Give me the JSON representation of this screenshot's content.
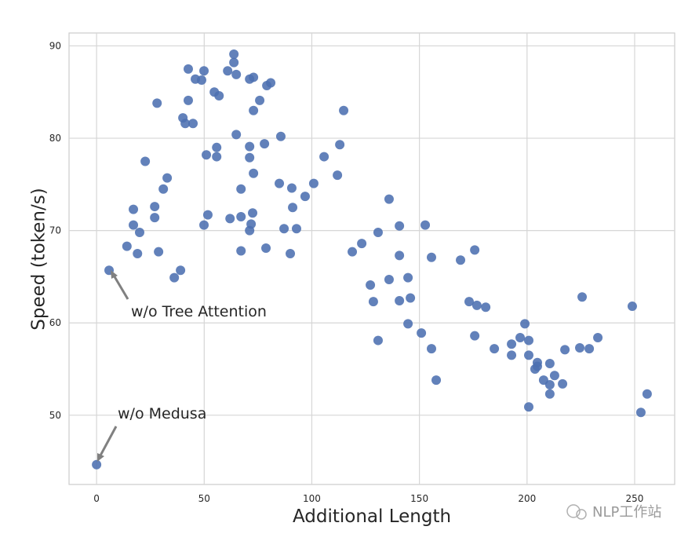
{
  "chart_data": {
    "type": "scatter",
    "x_label": "Additional Length",
    "y_label": "Speed (token/s)",
    "annotations": [
      "w/o Tree Attention",
      "w/o Medusa"
    ],
    "watermark": "NLP工作站",
    "color": "#4c6fb0",
    "grid": true,
    "xlim": [
      -12.8,
      268.6
    ],
    "ylim": [
      42.5,
      91.4
    ],
    "xticks": [
      0,
      50,
      100,
      150,
      200,
      250
    ],
    "yticks": [
      50,
      60,
      70,
      80,
      90
    ],
    "x": [
      0,
      5.8,
      14.1,
      17.1,
      17.1,
      19.0,
      20.0,
      22.6,
      27.0,
      27.0,
      28.1,
      28.8,
      31.0,
      32.8,
      36.1,
      39.0,
      40.1,
      41.2,
      42.6,
      42.6,
      44.8,
      45.9,
      48.8,
      49.9,
      49.9,
      51.0,
      51.7,
      54.7,
      55.8,
      55.8,
      56.9,
      60.9,
      62.0,
      63.8,
      63.8,
      64.9,
      64.9,
      67.1,
      67.1,
      67.1,
      71.1,
      72.9,
      71.1,
      71.1,
      71.1,
      71.8,
      72.5,
      72.9,
      72.9,
      75.8,
      78.0,
      78.7,
      79.1,
      80.9,
      84.9,
      85.6,
      87.1,
      90.0,
      90.7,
      91.1,
      92.9,
      96.9,
      100.9,
      105.7,
      111.9,
      113.0,
      114.8,
      118.8,
      123.2,
      127.2,
      128.6,
      130.8,
      130.8,
      135.9,
      135.9,
      140.7,
      140.7,
      140.7,
      144.7,
      144.7,
      145.8,
      150.9,
      152.7,
      155.6,
      155.6,
      157.8,
      169.1,
      173.1,
      175.7,
      175.7,
      176.7,
      180.8,
      184.8,
      192.8,
      192.8,
      196.8,
      199.0,
      200.8,
      200.8,
      200.8,
      203.7,
      204.8,
      204.8,
      207.7,
      210.6,
      210.6,
      210.6,
      212.8,
      216.5,
      217.6,
      224.5,
      225.6,
      228.9,
      232.9,
      248.9,
      252.9,
      255.8
    ],
    "values": [
      44.65,
      65.7,
      68.3,
      72.3,
      70.6,
      67.5,
      69.8,
      77.5,
      72.6,
      71.4,
      83.8,
      67.7,
      74.5,
      75.7,
      64.9,
      65.7,
      82.2,
      81.6,
      87.5,
      84.1,
      81.6,
      86.4,
      86.3,
      87.3,
      70.6,
      78.2,
      71.7,
      85.0,
      79.0,
      78.0,
      84.6,
      87.3,
      71.3,
      89.1,
      88.2,
      86.9,
      80.4,
      74.5,
      71.5,
      67.8,
      86.4,
      86.6,
      79.1,
      77.9,
      70.0,
      70.7,
      71.9,
      83.0,
      76.2,
      84.1,
      79.4,
      68.1,
      85.7,
      86.0,
      75.1,
      80.2,
      70.2,
      67.5,
      74.6,
      72.5,
      70.2,
      73.7,
      75.1,
      78.0,
      76.0,
      79.3,
      83.0,
      67.7,
      68.6,
      64.1,
      62.3,
      69.8,
      58.1,
      73.4,
      64.7,
      70.5,
      67.3,
      62.4,
      64.9,
      59.9,
      62.7,
      58.9,
      70.6,
      67.1,
      57.2,
      53.8,
      66.8,
      62.3,
      67.9,
      58.6,
      61.9,
      61.7,
      57.2,
      57.7,
      56.5,
      58.4,
      59.9,
      58.1,
      56.5,
      50.9,
      55.0,
      55.7,
      55.3,
      53.8,
      55.6,
      53.3,
      52.3,
      54.3,
      53.4,
      57.1,
      57.3,
      62.8,
      57.2,
      58.4,
      61.8,
      50.3,
      52.3
    ]
  }
}
